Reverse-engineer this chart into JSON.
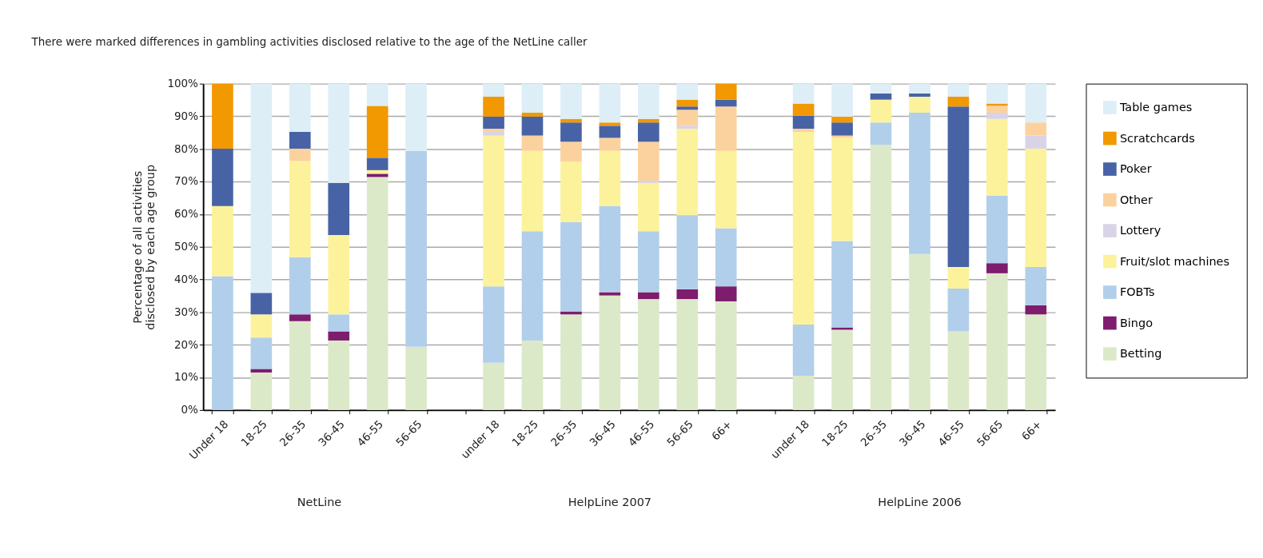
{
  "chart_data": {
    "type": "bar",
    "stacked": true,
    "title": "There were marked differences in gambling activities disclosed relative to the age of the NetLine caller",
    "ylabel": "Percentage of all activities\ndisclosed by each age group",
    "categories": [
      "Under 18",
      "18-25",
      "26-35",
      "36-45",
      "46-55",
      "56-65",
      null,
      "under 18",
      "18-25",
      "26-35",
      "36-45",
      "46-55",
      "56-65",
      "66+",
      null,
      "under 18",
      "18-25",
      "26-35",
      "36-45",
      "46-55",
      "56-65",
      "66+"
    ],
    "annotations": [
      "NetLine",
      "HelpLine 2007",
      "HelpLine 2006"
    ],
    "ylim": [
      0,
      100
    ],
    "yticks": [
      {
        "value": 0,
        "label": "0%"
      },
      {
        "value": 10,
        "label": "10%"
      },
      {
        "value": 20,
        "label": "20%"
      },
      {
        "value": 30,
        "label": "30%"
      },
      {
        "value": 40,
        "label": "40%"
      },
      {
        "value": 50,
        "label": "50%"
      },
      {
        "value": 60,
        "label": "60%"
      },
      {
        "value": 70,
        "label": "70%"
      },
      {
        "value": 80,
        "label": "80%"
      },
      {
        "value": 90,
        "label": "90%"
      },
      {
        "value": 100,
        "label": "100%"
      }
    ],
    "grid": "y",
    "legend": "right",
    "series": [
      {
        "name": "Betting",
        "color": "#dce9c8",
        "values": [
          0,
          11.5,
          27.2,
          21.3,
          71.4,
          19.4,
          null,
          14.5,
          21.3,
          29.3,
          35.1,
          34.0,
          34.0,
          33.3,
          null,
          10.5,
          24.6,
          81.3,
          47.8,
          24.1,
          41.9,
          29.3
        ]
      },
      {
        "name": "Bingo",
        "color": "#7e1c6e",
        "values": [
          0,
          1.1,
          2.1,
          2.8,
          1.0,
          0,
          null,
          0,
          0,
          0.9,
          1.0,
          2.1,
          3.0,
          4.6,
          null,
          0,
          0.7,
          0,
          0,
          0,
          3.1,
          2.8
        ]
      },
      {
        "name": "FOBTs",
        "color": "#b1cfea",
        "values": [
          41.0,
          9.6,
          17.5,
          5.2,
          0,
          60.0,
          null,
          23.4,
          33.5,
          27.4,
          26.4,
          18.7,
          22.7,
          17.8,
          null,
          15.7,
          26.5,
          6.8,
          43.3,
          13.1,
          20.6,
          11.7
        ]
      },
      {
        "name": "Fruit/slot machines",
        "color": "#fcf29c",
        "values": [
          21.5,
          7.1,
          29.5,
          24.3,
          1.1,
          0,
          null,
          46.2,
          24.6,
          18.5,
          16.9,
          14.8,
          26.5,
          23.7,
          null,
          59.0,
          31.6,
          7.0,
          4.9,
          6.6,
          23.6,
          36.3
        ]
      },
      {
        "name": "Lottery",
        "color": "#d9d3e8",
        "values": [
          0,
          0,
          0,
          0,
          0,
          0,
          null,
          1.1,
          0,
          0,
          0,
          0.7,
          0.9,
          0,
          null,
          0,
          0,
          0,
          0,
          0,
          1.9,
          4.0
        ]
      },
      {
        "name": "Other",
        "color": "#fbd29e",
        "values": [
          0,
          0,
          3.8,
          0,
          0,
          0,
          null,
          1.0,
          4.7,
          6.1,
          4.0,
          11.9,
          4.9,
          13.6,
          null,
          1.0,
          0.7,
          0,
          0,
          0,
          2.1,
          4.0
        ]
      },
      {
        "name": "Poker",
        "color": "#4863a5",
        "values": [
          17.6,
          6.6,
          5.1,
          16.0,
          3.8,
          0,
          null,
          3.7,
          5.8,
          5.9,
          3.7,
          5.9,
          1.0,
          2.1,
          null,
          4.0,
          4.0,
          1.9,
          1.0,
          49.2,
          0,
          0
        ]
      },
      {
        "name": "Scratchcards",
        "color": "#f29800",
        "values": [
          19.9,
          0,
          0,
          0,
          15.9,
          0,
          null,
          6.1,
          1.2,
          1.1,
          1.0,
          1.1,
          2.1,
          4.9,
          null,
          3.7,
          1.8,
          0,
          0,
          3.0,
          0.7,
          0
        ]
      },
      {
        "name": "Table games",
        "color": "#ddeef6",
        "values": [
          0,
          64.1,
          14.8,
          30.4,
          6.8,
          20.6,
          null,
          4.0,
          8.9,
          10.8,
          11.9,
          10.8,
          4.9,
          0,
          null,
          6.1,
          10.1,
          3.0,
          3.0,
          4.0,
          6.1,
          11.9
        ]
      }
    ]
  }
}
